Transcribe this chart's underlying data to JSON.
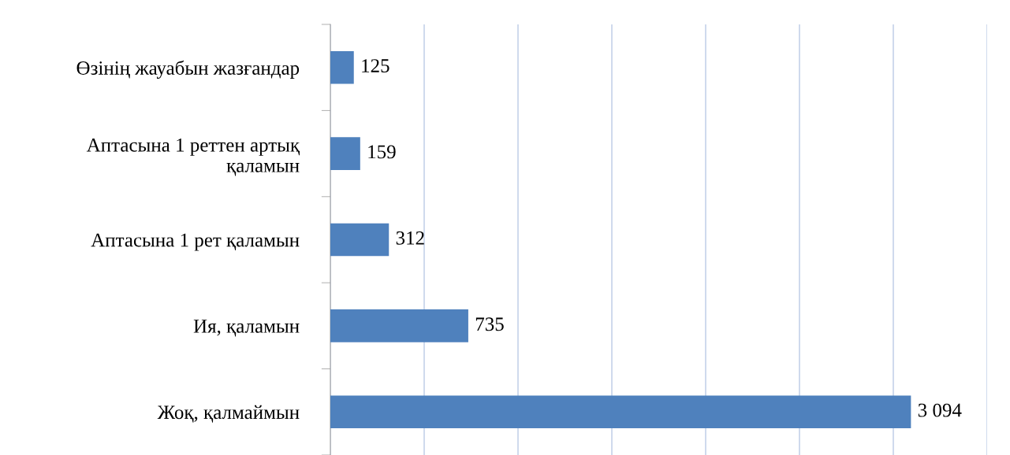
{
  "chart_data": {
    "type": "bar",
    "orientation": "horizontal",
    "categories": [
      "Өзінің жауабын жазғандар",
      "Аптасына 1 реттен артық қаламын",
      "Аптасына 1 рет қаламын",
      "Ия, қаламын",
      "Жоқ, қалмаймын"
    ],
    "values": [
      125,
      159,
      312,
      735,
      3094
    ],
    "value_labels": [
      "125",
      "159",
      "312",
      "735",
      "3 094"
    ],
    "color": "#4f81bd",
    "xlim": [
      0,
      3500
    ],
    "xticks": [
      {
        "value": 0,
        "label": null
      },
      {
        "value": 500,
        "label": null
      },
      {
        "value": 1000,
        "label": null
      },
      {
        "value": 1500,
        "label": null
      },
      {
        "value": 2000,
        "label": null
      },
      {
        "value": 2500,
        "label": null
      },
      {
        "value": 3000,
        "label": null
      },
      {
        "value": 3500,
        "label": null
      }
    ],
    "grid": "x",
    "tick_labels": "y"
  }
}
